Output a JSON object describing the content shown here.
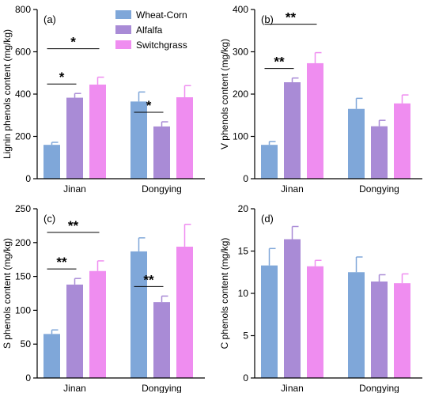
{
  "colors": {
    "Wheat-Corn": "#7fa7d9",
    "Alfalfa": "#a98bd6",
    "Switchgrass": "#ef8df0"
  },
  "legend": [
    "Wheat-Corn",
    "Alfalfa",
    "Switchgrass"
  ],
  "chart_data": [
    {
      "type": "bar",
      "panel": "(a)",
      "ylabel": "Lignin phenols content (mg/kg)",
      "ylim": [
        0,
        800
      ],
      "yticks": [
        0,
        200,
        400,
        600,
        800
      ],
      "categories": [
        "Jinan",
        "Dongying"
      ],
      "series": [
        {
          "name": "Wheat-Corn",
          "values": [
            160,
            365
          ],
          "errors": [
            12,
            45
          ]
        },
        {
          "name": "Alfalfa",
          "values": [
            383,
            247
          ],
          "errors": [
            20,
            22
          ]
        },
        {
          "name": "Switchgrass",
          "values": [
            445,
            385
          ],
          "errors": [
            35,
            55
          ]
        }
      ],
      "significance": [
        {
          "group": 0,
          "from": 0,
          "to": 1,
          "label": "*",
          "level": 1
        },
        {
          "group": 0,
          "from": 0,
          "to": 2,
          "label": "*",
          "level": 2
        },
        {
          "group": 1,
          "from": 0,
          "to": 1,
          "label": "*",
          "level": 1
        }
      ]
    },
    {
      "type": "bar",
      "panel": "(b)",
      "ylabel": "V phenols content (mg/kg)",
      "ylim": [
        0,
        400
      ],
      "yticks": [
        0,
        100,
        200,
        300,
        400
      ],
      "categories": [
        "Jinan",
        "Dongying"
      ],
      "series": [
        {
          "name": "Wheat-Corn",
          "values": [
            80,
            165
          ],
          "errors": [
            8,
            25
          ]
        },
        {
          "name": "Alfalfa",
          "values": [
            228,
            124
          ],
          "errors": [
            10,
            14
          ]
        },
        {
          "name": "Switchgrass",
          "values": [
            273,
            178
          ],
          "errors": [
            25,
            20
          ]
        }
      ],
      "significance": [
        {
          "group": 0,
          "from": 0,
          "to": 1,
          "label": "**",
          "level": 1
        },
        {
          "group": 0,
          "from": 0,
          "to": 2,
          "label": "**",
          "level": 2
        }
      ]
    },
    {
      "type": "bar",
      "panel": "(c)",
      "ylabel": "S phenols content (mg/kg)",
      "ylim": [
        0,
        250
      ],
      "yticks": [
        0,
        50,
        100,
        150,
        200,
        250
      ],
      "categories": [
        "Jinan",
        "Dongying"
      ],
      "series": [
        {
          "name": "Wheat-Corn",
          "values": [
            65,
            187
          ],
          "errors": [
            6,
            20
          ]
        },
        {
          "name": "Alfalfa",
          "values": [
            138,
            112
          ],
          "errors": [
            9,
            9
          ]
        },
        {
          "name": "Switchgrass",
          "values": [
            158,
            194
          ],
          "errors": [
            15,
            33
          ]
        }
      ],
      "significance": [
        {
          "group": 0,
          "from": 0,
          "to": 1,
          "label": "**",
          "level": 1
        },
        {
          "group": 0,
          "from": 0,
          "to": 2,
          "label": "**",
          "level": 2
        },
        {
          "group": 1,
          "from": 0,
          "to": 1,
          "label": "**",
          "level": 1
        }
      ]
    },
    {
      "type": "bar",
      "panel": "(d)",
      "ylabel": "C phenols content (mg/kg)",
      "ylim": [
        0,
        20
      ],
      "yticks": [
        0,
        5,
        10,
        15,
        20
      ],
      "categories": [
        "Jinan",
        "Dongying"
      ],
      "series": [
        {
          "name": "Wheat-Corn",
          "values": [
            13.3,
            12.5
          ],
          "errors": [
            2.0,
            1.8
          ]
        },
        {
          "name": "Alfalfa",
          "values": [
            16.4,
            11.4
          ],
          "errors": [
            1.5,
            0.8
          ]
        },
        {
          "name": "Switchgrass",
          "values": [
            13.2,
            11.2
          ],
          "errors": [
            0.7,
            1.1
          ]
        }
      ],
      "significance": []
    }
  ]
}
